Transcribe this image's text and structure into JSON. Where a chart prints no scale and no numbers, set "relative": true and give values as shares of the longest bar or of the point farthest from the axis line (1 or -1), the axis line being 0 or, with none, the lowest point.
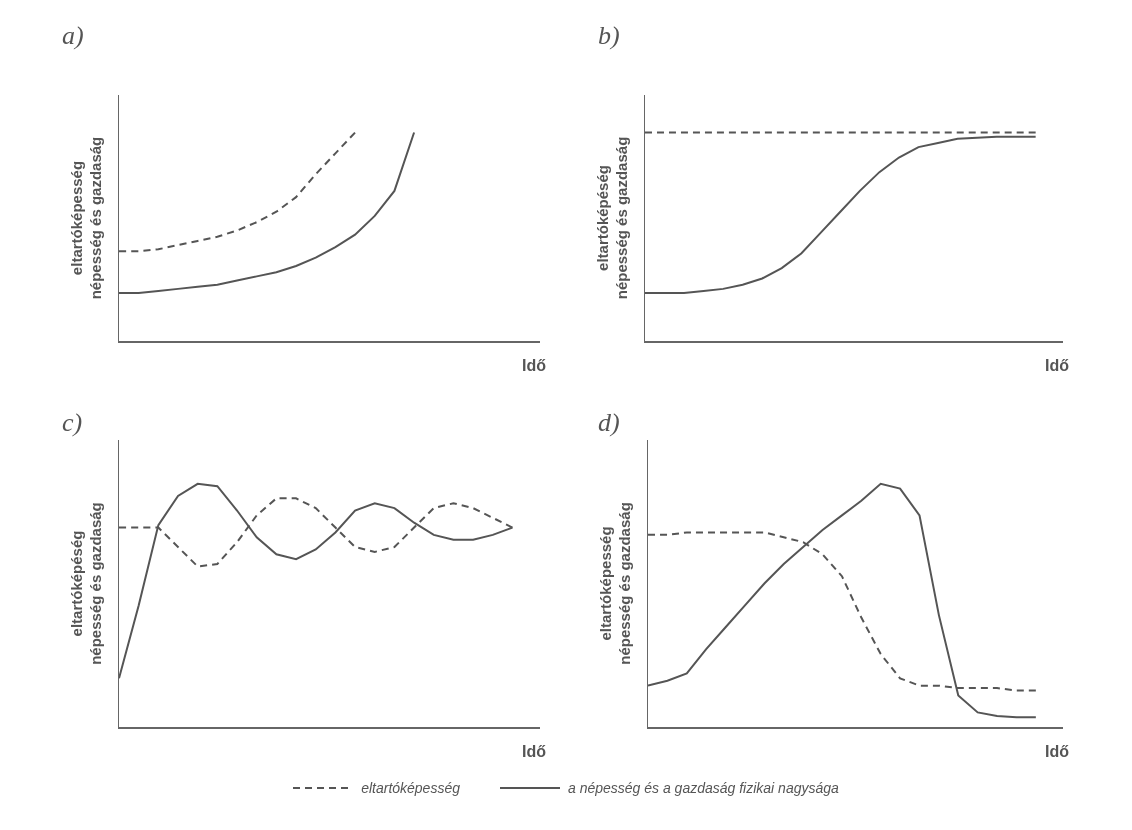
{
  "chart_data": [
    {
      "type": "line",
      "title": "a)",
      "ylabel": "eltartóképesség\nnépesség és gazdaság",
      "xlabel": "Idő",
      "relative": true,
      "categories": [
        null,
        null,
        null,
        null,
        null,
        null,
        null,
        null,
        null,
        null,
        null,
        null,
        null,
        null,
        null,
        null,
        null,
        null,
        null,
        null,
        null
      ],
      "series": [
        {
          "color": "#555555",
          "line_style": "dashed",
          "values": [
            0.43,
            0.43,
            0.44,
            0.46,
            0.48,
            0.5,
            0.53,
            0.57,
            0.62,
            0.69,
            0.8,
            0.9,
            1.0,
            null,
            null,
            null,
            null,
            null,
            null,
            null,
            null
          ]
        },
        {
          "color": "#555555",
          "line_style": "solid",
          "values": [
            0.23,
            0.23,
            0.24,
            0.25,
            0.26,
            0.27,
            0.29,
            0.31,
            0.33,
            0.36,
            0.4,
            0.45,
            0.51,
            0.6,
            0.72,
            1.0,
            null,
            null,
            null,
            null,
            null
          ]
        }
      ]
    },
    {
      "type": "line",
      "title": "b)",
      "ylabel": "eltartóképéség\nnépesség és gazdaság",
      "xlabel": "Idő",
      "relative": true,
      "categories": [
        null,
        null,
        null,
        null,
        null,
        null,
        null,
        null,
        null,
        null,
        null,
        null,
        null,
        null,
        null,
        null,
        null,
        null,
        null,
        null,
        null
      ],
      "series": [
        {
          "color": "#555555",
          "line_style": "dashed",
          "values": [
            1,
            1,
            1,
            1,
            1,
            1,
            1,
            1,
            1,
            1,
            1,
            1,
            1,
            1,
            1,
            1,
            1,
            1,
            1,
            1,
            1
          ]
        },
        {
          "color": "#555555",
          "line_style": "solid",
          "values": [
            0.23,
            0.23,
            0.23,
            0.24,
            0.25,
            0.27,
            0.3,
            0.35,
            0.42,
            0.52,
            0.62,
            0.72,
            0.81,
            0.88,
            0.93,
            0.95,
            0.97,
            0.975,
            0.98,
            0.98,
            0.98
          ]
        }
      ]
    },
    {
      "type": "line",
      "title": "c)",
      "ylabel": "eltartóképéség\nnépesség és gazdaság",
      "xlabel": "Idő",
      "relative": true,
      "legend": "bottom",
      "categories": [
        null,
        null,
        null,
        null,
        null,
        null,
        null,
        null,
        null,
        null,
        null,
        null,
        null,
        null,
        null,
        null,
        null,
        null,
        null,
        null,
        null
      ],
      "series": [
        {
          "name": "eltartóképesség",
          "color": "#555555",
          "line_style": "dashed",
          "values": [
            0.82,
            0.82,
            0.82,
            0.74,
            0.66,
            0.67,
            0.76,
            0.87,
            0.94,
            0.94,
            0.9,
            0.82,
            0.74,
            0.72,
            0.74,
            0.82,
            0.9,
            0.92,
            0.9,
            0.86,
            0.82
          ]
        },
        {
          "color": "#555555",
          "line_style": "solid",
          "values": [
            0.2,
            0.5,
            0.83,
            0.95,
            1.0,
            0.99,
            0.89,
            0.78,
            0.71,
            0.69,
            0.73,
            0.8,
            0.89,
            0.92,
            0.9,
            0.84,
            0.79,
            0.77,
            0.77,
            0.79,
            0.82
          ]
        }
      ]
    },
    {
      "type": "line",
      "title": "d)",
      "ylabel": "eltartóképesség\nnépesség és gazdaság",
      "xlabel": "Idő",
      "relative": true,
      "legend": "bottom",
      "categories": [
        null,
        null,
        null,
        null,
        null,
        null,
        null,
        null,
        null,
        null,
        null,
        null,
        null,
        null,
        null,
        null,
        null,
        null,
        null,
        null,
        null
      ],
      "series": [
        {
          "color": "#555555",
          "line_style": "dashed",
          "values": [
            0.79,
            0.79,
            0.8,
            0.8,
            0.8,
            0.8,
            0.8,
            0.78,
            0.76,
            0.71,
            0.62,
            0.45,
            0.3,
            0.2,
            0.17,
            0.17,
            0.16,
            0.16,
            0.16,
            0.15,
            0.15
          ]
        },
        {
          "name": "a népesség és a gazdaság fizikai nagysága",
          "color": "#555555",
          "line_style": "solid",
          "values": [
            0.17,
            0.19,
            0.22,
            0.32,
            0.41,
            0.5,
            0.59,
            0.67,
            0.74,
            0.81,
            0.87,
            0.93,
            1.0,
            0.98,
            0.87,
            0.46,
            0.13,
            0.06,
            0.045,
            0.04,
            0.04
          ]
        }
      ]
    }
  ]
}
